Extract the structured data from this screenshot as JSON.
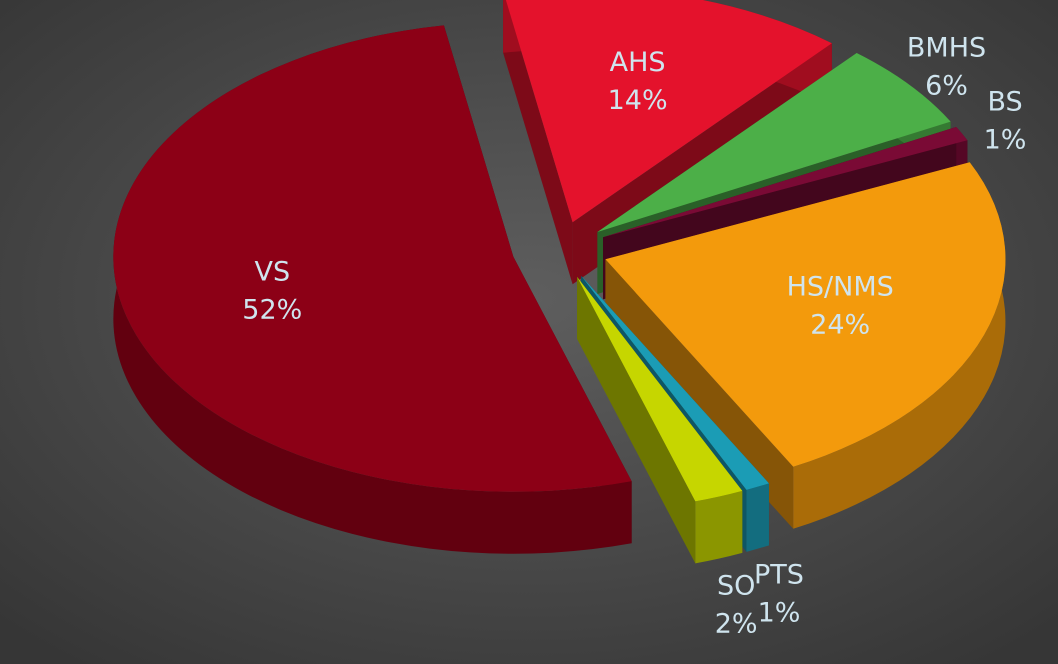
{
  "chart_data": {
    "type": "pie",
    "categories": [
      "AHS",
      "BMHS",
      "BS",
      "HS/NMS",
      "PTS",
      "SO",
      "VS"
    ],
    "values": [
      14,
      6,
      1,
      24,
      1,
      2,
      52
    ],
    "value_labels": [
      "14%",
      "6%",
      "1%",
      "24%",
      "1%",
      "2%",
      "52%"
    ],
    "colors": [
      "#e4122c",
      "#4caf48",
      "#7a0a35",
      "#f39a0c",
      "#1b9cb5",
      "#c6d600",
      "#8c0016"
    ]
  }
}
